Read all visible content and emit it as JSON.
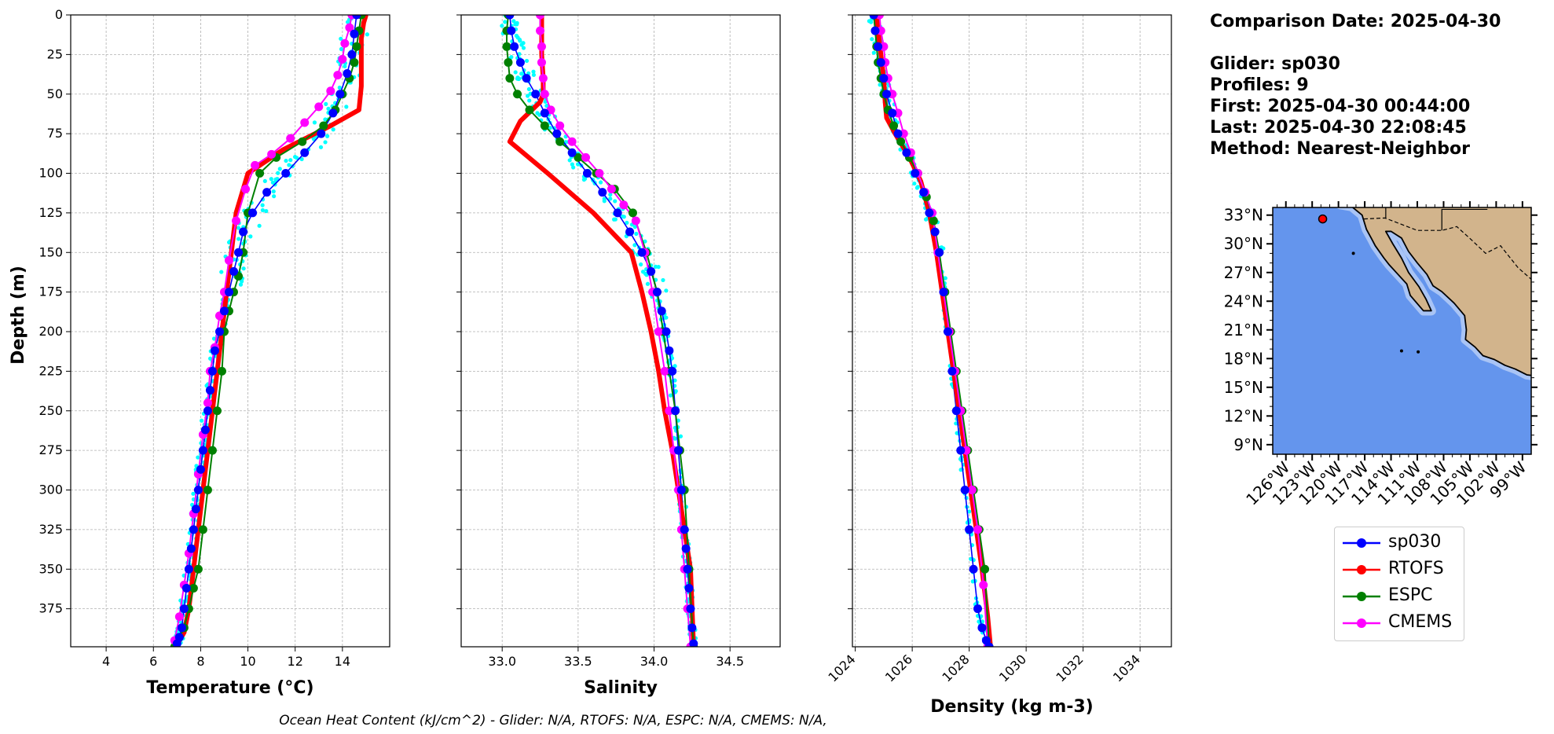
{
  "info": {
    "comparison_date": "Comparison Date: 2025-04-30",
    "glider": "Glider: sp030",
    "profiles": "Profiles: 9",
    "first": "First: 2025-04-30 00:44:00",
    "last": "Last: 2025-04-30 22:08:45",
    "method": "Method: Nearest-Neighbor"
  },
  "footer": "Ocean Heat Content (kJ/cm^2) - Glider: N/A,  RTOFS: N/A,  ESPC: N/A,  CMEMS: N/A,",
  "colors": {
    "sp030": "#0000ff",
    "RTOFS": "#ff0000",
    "ESPC": "#008000",
    "CMEMS": "#ff00ff",
    "glider_scatter": "#00ffff",
    "ocean": "#6495ed",
    "shelf": "#a9c4f5",
    "land": "#d2b48c"
  },
  "legend": [
    {
      "name": "sp030",
      "color": "#0000ff"
    },
    {
      "name": "RTOFS",
      "color": "#ff0000"
    },
    {
      "name": "ESPC",
      "color": "#008000"
    },
    {
      "name": "CMEMS",
      "color": "#ff00ff"
    }
  ],
  "chart_data": [
    {
      "type": "line",
      "xlabel": "Temperature (°C)",
      "ylabel": "Depth (m)",
      "xlim": [
        2.5,
        16
      ],
      "ylim": [
        399,
        0
      ],
      "xticks": [
        4,
        6,
        8,
        10,
        12,
        14
      ],
      "yticks": [
        0,
        25,
        50,
        75,
        100,
        125,
        150,
        175,
        200,
        225,
        250,
        275,
        300,
        325,
        350,
        375
      ],
      "grid": true,
      "series": [
        {
          "name": "sp030",
          "x": [
            14.6,
            14.5,
            14.4,
            14.2,
            13.9,
            13.6,
            13.1,
            12.4,
            11.6,
            10.8,
            10.2,
            9.8,
            9.6,
            9.4,
            9.2,
            9.0,
            8.8,
            8.6,
            8.5,
            8.4,
            8.3,
            8.2,
            8.1,
            8.0,
            7.9,
            7.8,
            7.7,
            7.6,
            7.5,
            7.4,
            7.3,
            7.2,
            7.1,
            7.0
          ],
          "y": [
            0,
            12,
            25,
            37,
            50,
            62,
            75,
            87,
            100,
            112,
            125,
            137,
            150,
            162,
            175,
            187,
            200,
            212,
            225,
            237,
            250,
            262,
            275,
            287,
            300,
            312,
            325,
            337,
            350,
            362,
            375,
            387,
            393,
            397
          ]
        },
        {
          "name": "RTOFS",
          "x": [
            15.0,
            14.9,
            14.8,
            14.8,
            14.8,
            14.8,
            14.7,
            13.5,
            11.5,
            10.0,
            9.5,
            9.3,
            9.1,
            8.9,
            8.7,
            8.5,
            8.3,
            8.1,
            7.9,
            7.7,
            7.5,
            7.3,
            7.1,
            7.0
          ],
          "y": [
            0,
            5,
            15,
            25,
            35,
            45,
            60,
            70,
            85,
            100,
            125,
            150,
            175,
            200,
            225,
            250,
            275,
            300,
            325,
            350,
            375,
            390,
            395,
            399
          ]
        },
        {
          "name": "ESPC",
          "x": [
            14.8,
            14.7,
            14.6,
            14.5,
            14.3,
            14.0,
            13.7,
            13.2,
            12.3,
            11.2,
            10.5,
            10.0,
            9.8,
            9.6,
            9.4,
            9.2,
            9.0,
            8.9,
            8.7,
            8.5,
            8.3,
            8.1,
            7.9,
            7.7,
            7.5,
            7.3,
            7.1,
            6.9
          ],
          "y": [
            0,
            10,
            20,
            30,
            40,
            50,
            60,
            70,
            80,
            90,
            100,
            125,
            150,
            165,
            175,
            187,
            200,
            225,
            250,
            275,
            300,
            325,
            350,
            362,
            375,
            387,
            393,
            399
          ]
        },
        {
          "name": "CMEMS",
          "x": [
            14.4,
            14.3,
            14.1,
            14.0,
            13.8,
            13.5,
            13.0,
            12.4,
            11.8,
            11.0,
            10.3,
            9.9,
            9.5,
            9.2,
            9.0,
            8.8,
            8.6,
            8.4,
            8.3,
            8.1,
            7.9,
            7.7,
            7.5,
            7.3,
            7.1,
            6.9
          ],
          "y": [
            0,
            8,
            18,
            28,
            38,
            48,
            58,
            68,
            78,
            88,
            95,
            110,
            130,
            155,
            175,
            190,
            210,
            225,
            245,
            265,
            290,
            315,
            340,
            360,
            380,
            395
          ]
        }
      ]
    },
    {
      "type": "line",
      "xlabel": "Salinity",
      "xlim": [
        32.73,
        34.83
      ],
      "ylim": [
        399,
        0
      ],
      "xticks": [
        33.0,
        33.5,
        34.0,
        34.5
      ],
      "xtick_labels": [
        "33.0",
        "33.5",
        "34.0",
        "34.5"
      ],
      "grid": true,
      "series": [
        {
          "name": "sp030",
          "x": [
            33.05,
            33.06,
            33.08,
            33.12,
            33.16,
            33.22,
            33.28,
            33.36,
            33.46,
            33.56,
            33.66,
            33.76,
            33.84,
            33.92,
            33.98,
            34.02,
            34.05,
            34.08,
            34.1,
            34.12,
            34.14,
            34.16,
            34.18,
            34.2,
            34.21,
            34.22,
            34.23,
            34.24,
            34.25,
            34.26
          ],
          "y": [
            0,
            10,
            20,
            30,
            40,
            50,
            62,
            75,
            87,
            100,
            112,
            125,
            137,
            150,
            162,
            175,
            187,
            200,
            212,
            225,
            250,
            275,
            300,
            325,
            337,
            350,
            362,
            375,
            387,
            397
          ]
        },
        {
          "name": "RTOFS",
          "x": [
            33.26,
            33.26,
            33.26,
            33.27,
            33.27,
            33.25,
            33.12,
            33.05,
            33.3,
            33.6,
            33.85,
            33.92,
            33.98,
            34.03,
            34.07,
            34.12,
            34.16,
            34.2,
            34.24,
            34.26
          ],
          "y": [
            0,
            10,
            25,
            40,
            50,
            55,
            67,
            80,
            100,
            125,
            150,
            175,
            200,
            225,
            250,
            275,
            300,
            325,
            350,
            399
          ]
        },
        {
          "name": "ESPC",
          "x": [
            33.04,
            33.03,
            33.03,
            33.04,
            33.05,
            33.1,
            33.18,
            33.28,
            33.38,
            33.5,
            33.62,
            33.74,
            33.86,
            33.95,
            34.02,
            34.06,
            34.1,
            34.14,
            34.17,
            34.2,
            34.23,
            34.26
          ],
          "y": [
            0,
            10,
            20,
            30,
            40,
            50,
            60,
            70,
            80,
            90,
            100,
            110,
            125,
            150,
            175,
            200,
            225,
            250,
            275,
            300,
            350,
            399
          ]
        },
        {
          "name": "CMEMS",
          "x": [
            33.25,
            33.25,
            33.26,
            33.26,
            33.27,
            33.28,
            33.32,
            33.38,
            33.46,
            33.55,
            33.64,
            33.72,
            33.8,
            33.88,
            33.94,
            33.99,
            34.03,
            34.07,
            34.1,
            34.13,
            34.16,
            34.18,
            34.2,
            34.22,
            34.24
          ],
          "y": [
            0,
            10,
            20,
            30,
            40,
            50,
            60,
            70,
            80,
            90,
            100,
            110,
            120,
            130,
            150,
            175,
            200,
            225,
            250,
            275,
            300,
            325,
            350,
            375,
            399
          ]
        }
      ]
    },
    {
      "type": "line",
      "xlabel": "Density (kg m-3)",
      "xlim": [
        1023.9,
        1035.1
      ],
      "ylim": [
        399,
        0
      ],
      "xticks": [
        1024,
        1026,
        1028,
        1030,
        1032,
        1034
      ],
      "grid": true,
      "series": [
        {
          "name": "sp030",
          "x": [
            1024.65,
            1024.7,
            1024.8,
            1024.9,
            1025.0,
            1025.1,
            1025.3,
            1025.5,
            1025.8,
            1026.1,
            1026.4,
            1026.6,
            1026.8,
            1026.95,
            1027.1,
            1027.25,
            1027.4,
            1027.55,
            1027.7,
            1027.85,
            1028.0,
            1028.15,
            1028.3,
            1028.45,
            1028.6,
            1028.7
          ],
          "y": [
            0,
            10,
            20,
            30,
            40,
            50,
            62,
            75,
            87,
            100,
            112,
            125,
            137,
            150,
            175,
            200,
            225,
            250,
            275,
            300,
            325,
            350,
            375,
            387,
            395,
            399
          ]
        },
        {
          "name": "RTOFS",
          "x": [
            1024.75,
            1024.8,
            1024.9,
            1025.0,
            1025.05,
            1025.1,
            1025.4,
            1025.9,
            1026.3,
            1026.6,
            1026.85,
            1027.05,
            1027.25,
            1027.45,
            1027.65,
            1027.85,
            1028.05,
            1028.25,
            1028.45,
            1028.65,
            1028.75
          ],
          "y": [
            0,
            10,
            25,
            40,
            55,
            65,
            75,
            90,
            105,
            125,
            150,
            175,
            200,
            225,
            250,
            275,
            300,
            325,
            350,
            380,
            399
          ]
        },
        {
          "name": "ESPC",
          "x": [
            1024.65,
            1024.7,
            1024.75,
            1024.8,
            1024.9,
            1025.0,
            1025.15,
            1025.35,
            1025.6,
            1025.9,
            1026.2,
            1026.5,
            1026.75,
            1026.95,
            1027.15,
            1027.35,
            1027.55,
            1027.75,
            1027.95,
            1028.15,
            1028.35,
            1028.55,
            1028.7
          ],
          "y": [
            0,
            10,
            20,
            30,
            40,
            50,
            60,
            70,
            80,
            90,
            100,
            115,
            130,
            150,
            175,
            200,
            225,
            250,
            275,
            300,
            325,
            350,
            399
          ]
        },
        {
          "name": "CMEMS",
          "x": [
            1024.85,
            1024.9,
            1025.0,
            1025.05,
            1025.15,
            1025.3,
            1025.5,
            1025.7,
            1025.95,
            1026.2,
            1026.45,
            1026.7,
            1026.9,
            1027.1,
            1027.3,
            1027.5,
            1027.7,
            1027.9,
            1028.1,
            1028.3,
            1028.5,
            1028.65
          ],
          "y": [
            0,
            10,
            20,
            30,
            40,
            50,
            62,
            75,
            87,
            100,
            112,
            125,
            150,
            175,
            200,
            225,
            250,
            275,
            300,
            325,
            360,
            399
          ]
        }
      ]
    }
  ],
  "map": {
    "lat_labels": [
      "33°N",
      "30°N",
      "27°N",
      "24°N",
      "21°N",
      "18°N",
      "15°N",
      "12°N",
      "9°N"
    ],
    "lon_labels": [
      "126°W",
      "123°W",
      "120°W",
      "117°W",
      "114°W",
      "111°W",
      "108°W",
      "105°W",
      "102°W",
      "99°W"
    ],
    "lon_range": [
      127.5,
      98.0
    ],
    "lat_range": [
      8.0,
      33.8
    ],
    "glider_position": {
      "lon": -121.8,
      "lat": 32.6
    }
  }
}
